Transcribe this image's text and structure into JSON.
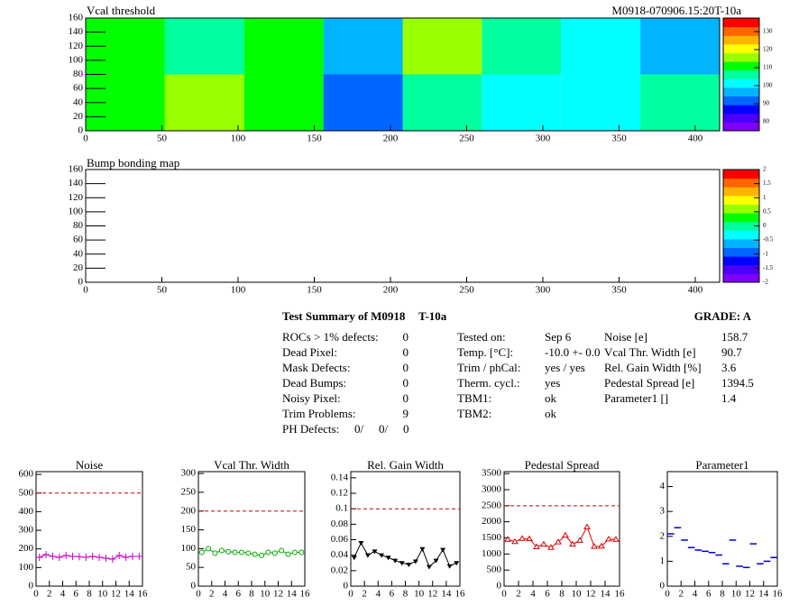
{
  "chart_data": [
    {
      "type": "heatmap",
      "title": "Vcal threshold",
      "subtitle": "M0918-070906.15:20T-10a",
      "x_edges": [
        0,
        52,
        104,
        156,
        208,
        260,
        312,
        364,
        416
      ],
      "y_edges": [
        0,
        80,
        160
      ],
      "values": [
        [
          112,
          116,
          113,
          92,
          108,
          99,
          100,
          107
        ],
        [
          113,
          106,
          110,
          97,
          119,
          104,
          102,
          95
        ]
      ],
      "xlim": [
        0,
        416
      ],
      "ylim": [
        0,
        160
      ],
      "xticks": [
        0,
        50,
        100,
        150,
        200,
        250,
        300,
        350,
        400
      ],
      "yticks": [
        0,
        20,
        40,
        60,
        80,
        100,
        120,
        140,
        160
      ],
      "zlim": [
        75,
        137.5
      ],
      "zticks": [
        80,
        90,
        100,
        110,
        120,
        130
      ],
      "palette": [
        "#7f00ff",
        "#4b00ff",
        "#0000ff",
        "#0066ff",
        "#00b4ff",
        "#00ffff",
        "#00ff9f",
        "#00ff00",
        "#99ff00",
        "#ffff00",
        "#ffb400",
        "#ff6600",
        "#ff0000"
      ]
    },
    {
      "type": "heatmap",
      "title": "Bump bonding map",
      "xlim": [
        0,
        416
      ],
      "ylim": [
        0,
        160
      ],
      "xticks": [
        0,
        50,
        100,
        150,
        200,
        250,
        300,
        350,
        400
      ],
      "yticks": [
        0,
        20,
        40,
        60,
        80,
        100,
        120,
        140,
        160
      ],
      "zlim": [
        -2,
        2
      ],
      "zticks": [
        -2,
        -1.5,
        -1,
        -0.5,
        0,
        0.5,
        1,
        1.5,
        2
      ],
      "palette": [
        "#7f00ff",
        "#4b00ff",
        "#0000ff",
        "#0066ff",
        "#00b4ff",
        "#00ffff",
        "#00ff9f",
        "#00ff00",
        "#99ff00",
        "#ffff00",
        "#ffb400",
        "#ff6600",
        "#ff0000"
      ]
    },
    {
      "type": "line",
      "title": "Noise",
      "x": [
        0.5,
        1.5,
        2.5,
        3.5,
        4.5,
        5.5,
        6.5,
        7.5,
        8.5,
        9.5,
        10.5,
        11.5,
        12.5,
        13.5,
        14.5,
        15.5
      ],
      "values": [
        155,
        170,
        160,
        155,
        165,
        160,
        158,
        155,
        160,
        155,
        150,
        145,
        165,
        155,
        160,
        160
      ],
      "color": "#cc00cc",
      "marker": "plus",
      "line": true,
      "limit": 500,
      "limit_color": "#cc0000",
      "xlim": [
        0,
        16
      ],
      "ylim": [
        0,
        615
      ],
      "xticks": [
        0,
        2,
        4,
        6,
        8,
        10,
        12,
        14,
        16
      ],
      "yticks": [
        0,
        100,
        200,
        300,
        400,
        500,
        600
      ]
    },
    {
      "type": "line",
      "title": "Vcal Thr. Width",
      "x": [
        0.5,
        1.5,
        2.5,
        3.5,
        4.5,
        5.5,
        6.5,
        7.5,
        8.5,
        9.5,
        10.5,
        11.5,
        12.5,
        13.5,
        14.5,
        15.5
      ],
      "values": [
        90,
        100,
        88,
        95,
        92,
        90,
        90,
        88,
        85,
        82,
        90,
        88,
        95,
        85,
        90,
        90
      ],
      "color": "#00aa00",
      "marker": "circle-open",
      "line": true,
      "limit": 200,
      "limit_color": "#cc0000",
      "xlim": [
        0,
        16
      ],
      "ylim": [
        0,
        305
      ],
      "xticks": [
        0,
        2,
        4,
        6,
        8,
        10,
        12,
        14,
        16
      ],
      "yticks": [
        0,
        50,
        100,
        150,
        200,
        250,
        300
      ]
    },
    {
      "type": "line",
      "title": "Rel. Gain Width",
      "x": [
        0.5,
        1.5,
        2.5,
        3.5,
        4.5,
        5.5,
        6.5,
        7.5,
        8.5,
        9.5,
        10.5,
        11.5,
        12.5,
        13.5,
        14.5,
        15.5
      ],
      "values": [
        0.037,
        0.056,
        0.04,
        0.045,
        0.04,
        0.037,
        0.033,
        0.03,
        0.028,
        0.032,
        0.048,
        0.025,
        0.033,
        0.047,
        0.026,
        0.03
      ],
      "color": "#000000",
      "marker": "triangle-down",
      "line": true,
      "limit": 0.1,
      "limit_color": "#cc0000",
      "xlim": [
        0,
        16
      ],
      "ylim": [
        0,
        0.148
      ],
      "xticks": [
        0,
        2,
        4,
        6,
        8,
        10,
        12,
        14,
        16
      ],
      "yticks": [
        0,
        0.02,
        0.04,
        0.06,
        0.08,
        0.1,
        0.12,
        0.14
      ]
    },
    {
      "type": "line",
      "title": "Pedestal Spread",
      "x": [
        0.5,
        1.5,
        2.5,
        3.5,
        4.5,
        5.5,
        6.5,
        7.5,
        8.5,
        9.5,
        10.5,
        11.5,
        12.5,
        13.5,
        14.5,
        15.5
      ],
      "values": [
        1450,
        1380,
        1480,
        1470,
        1220,
        1300,
        1200,
        1370,
        1580,
        1300,
        1420,
        1840,
        1230,
        1240,
        1460,
        1450
      ],
      "color": "#dd0000",
      "marker": "triangle-up-open",
      "line": true,
      "limit": 2500,
      "limit_color": "#cc0000",
      "xlim": [
        0,
        16
      ],
      "ylim": [
        0,
        3560
      ],
      "xticks": [
        0,
        2,
        4,
        6,
        8,
        10,
        12,
        14,
        16
      ],
      "yticks": [
        0,
        500,
        1000,
        1500,
        2000,
        2500,
        3000,
        3500
      ]
    },
    {
      "type": "line",
      "title": "Parameter1",
      "x": [
        0.5,
        1.5,
        2.5,
        3.5,
        4.5,
        5.5,
        6.5,
        7.5,
        8.5,
        9.5,
        10.5,
        11.5,
        12.5,
        13.5,
        14.5,
        15.5
      ],
      "values": [
        2.1,
        2.35,
        1.85,
        1.55,
        1.45,
        1.4,
        1.35,
        1.25,
        0.9,
        1.85,
        0.8,
        0.75,
        1.7,
        0.9,
        1.0,
        1.15
      ],
      "color": "#0000cc",
      "marker": "dash",
      "line": false,
      "xlim": [
        0,
        16
      ],
      "ylim": [
        0,
        4.6
      ],
      "xticks": [
        0,
        2,
        4,
        6,
        8,
        10,
        12,
        14,
        16
      ],
      "yticks": [
        0,
        1,
        2,
        3,
        4
      ]
    }
  ],
  "summary": {
    "title": "Test Summary of M0918",
    "tag": "T-10a",
    "grade": "GRADE:  A",
    "left": [
      {
        "label": "ROCs > 1% defects:",
        "value": 0
      },
      {
        "label": "Dead Pixel:",
        "value": 0
      },
      {
        "label": "Mask Defects:",
        "value": 0
      },
      {
        "label": "Dead Bumps:",
        "value": 0
      },
      {
        "label": "Noisy Pixel:",
        "value": 0
      },
      {
        "label": "Trim Problems:",
        "value": 9
      }
    ],
    "ph_defects": {
      "label": "PH Defects:",
      "values": [
        {
          "text": "0/",
          "color": "#000000"
        },
        {
          "text": "0/",
          "color": "#ff0000"
        },
        {
          "text": "0",
          "color": "#0000ff"
        }
      ]
    },
    "middle": [
      {
        "label": "Tested on:",
        "value": "Sep 6"
      },
      {
        "label": "Temp. [°C]:",
        "value": "-10.0 +- 0.0"
      },
      {
        "label": "Trim / phCal:",
        "value": "yes / yes"
      },
      {
        "label": "Therm. cycl.:",
        "value": "yes"
      },
      {
        "label": "TBM1:",
        "value": "ok"
      },
      {
        "label": "TBM2:",
        "value": "ok"
      }
    ],
    "right": [
      {
        "label": "Noise [e]",
        "value": 158.7
      },
      {
        "label": "Vcal Thr. Width [e]",
        "value": 90.7
      },
      {
        "label": "Rel. Gain Width [%]",
        "value": 3.6
      },
      {
        "label": "Pedestal Spread [e]",
        "value": 1394.5
      },
      {
        "label": "Parameter1 []",
        "value": 1.4
      }
    ]
  }
}
